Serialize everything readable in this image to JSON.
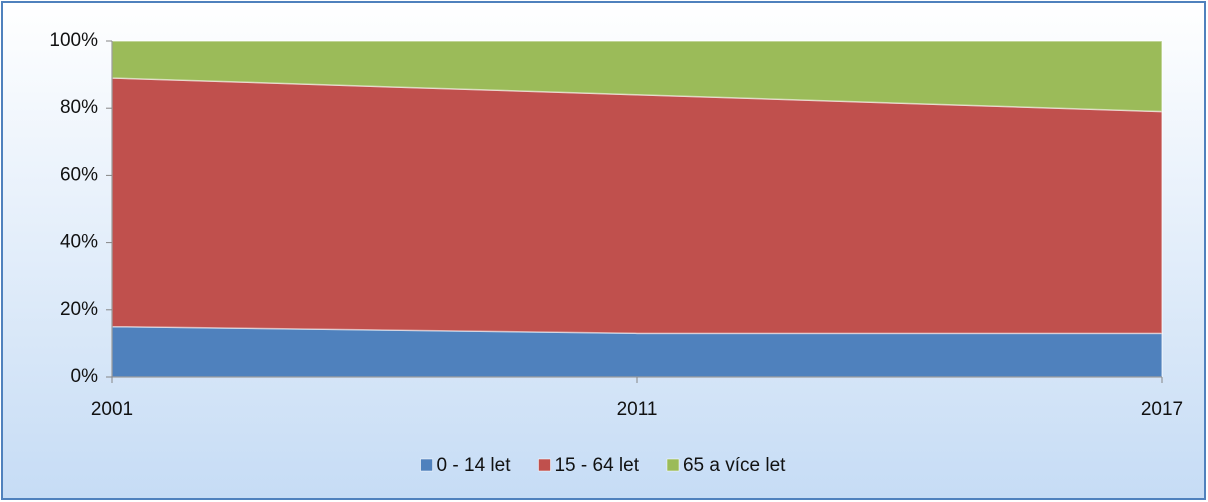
{
  "chart_data": {
    "type": "stacked-area",
    "categories": [
      "2001",
      "2011",
      "2017"
    ],
    "series": [
      {
        "name": "0 - 14 let",
        "color": "#4f81bd",
        "values": [
          15,
          13,
          13
        ]
      },
      {
        "name": "15 - 64 let",
        "color": "#c0504d",
        "values": [
          74,
          71,
          66
        ]
      },
      {
        "name": "65 a více let",
        "color": "#9bbb59",
        "values": [
          11,
          16,
          21
        ]
      }
    ],
    "ylim": [
      0,
      100
    ],
    "yticks": [
      {
        "value": 0,
        "label": "0%"
      },
      {
        "value": 20,
        "label": "20%"
      },
      {
        "value": 40,
        "label": "40%"
      },
      {
        "value": 60,
        "label": "60%"
      },
      {
        "value": 80,
        "label": "80%"
      },
      {
        "value": 100,
        "label": "100%"
      }
    ],
    "legend": "bottom"
  }
}
